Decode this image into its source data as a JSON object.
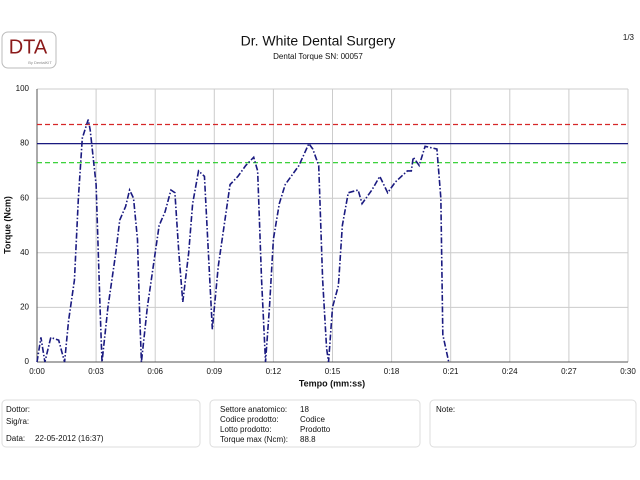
{
  "header": {
    "logo": "DTA",
    "logo_sub": "By DentalKIT",
    "page": "1/3"
  },
  "chart_data": {
    "type": "line",
    "title": "Dr. White Dental Surgery",
    "subtitle": "Dental Torque SN: 00057",
    "xlabel": "Tempo (mm:ss)",
    "ylabel": "Torque (Ncm)",
    "x": [
      0,
      0.2,
      0.4,
      0.7,
      1.1,
      1.4,
      1.6,
      1.9,
      2.1,
      2.3,
      2.6,
      2.7,
      3.0,
      3.2,
      3.3,
      3.6,
      4.0,
      4.2,
      4.5,
      4.7,
      4.9,
      5.1,
      5.2,
      5.3,
      5.6,
      5.9,
      6.2,
      6.5,
      6.8,
      7.0,
      7.2,
      7.4,
      7.7,
      7.9,
      8.2,
      8.5,
      8.7,
      8.9,
      9.2,
      9.5,
      9.8,
      10.2,
      10.6,
      11.0,
      11.2,
      11.4,
      11.6,
      11.8,
      12.0,
      12.3,
      12.6,
      12.9,
      13.3,
      13.8,
      14.0,
      14.3,
      14.5,
      14.7,
      14.8,
      15.0,
      15.3,
      15.5,
      15.8,
      16.3,
      16.5,
      17.0,
      17.4,
      17.8,
      18.2,
      18.8,
      19.0,
      19.1,
      19.4,
      19.7,
      20.3,
      20.5,
      20.6,
      20.9
    ],
    "series": [
      {
        "color": "#1a1a80",
        "values": [
          0,
          9,
          0,
          9,
          8,
          0,
          15,
          30,
          60,
          82,
          88.8,
          85,
          65,
          20,
          0,
          20,
          40,
          52,
          57,
          63,
          60,
          45,
          20,
          0,
          20,
          35,
          50,
          55,
          63,
          62,
          40,
          22,
          40,
          58,
          70,
          68,
          40,
          12,
          35,
          50,
          65,
          68,
          72,
          75,
          70,
          30,
          0,
          20,
          45,
          58,
          65,
          68,
          72,
          80,
          78,
          72,
          30,
          5,
          0,
          20,
          28,
          50,
          62,
          63,
          58,
          63,
          68,
          62,
          66,
          70,
          70,
          75,
          72,
          79,
          78,
          60,
          10,
          0
        ]
      }
    ],
    "reference_lines": [
      {
        "value": 87,
        "color": "#d62728",
        "dashed": true
      },
      {
        "value": 80,
        "color": "#1a1a80",
        "dashed": false
      },
      {
        "value": 73,
        "color": "#22cc22",
        "dashed": true
      }
    ],
    "xlim": [
      0,
      30
    ],
    "ylim": [
      0,
      100
    ],
    "xticks": [
      {
        "value": 0,
        "label": "0:00"
      },
      {
        "value": 3,
        "label": "0:03"
      },
      {
        "value": 6,
        "label": "0:06"
      },
      {
        "value": 9,
        "label": "0:09"
      },
      {
        "value": 12,
        "label": "0:12"
      },
      {
        "value": 15,
        "label": "0:15"
      },
      {
        "value": 18,
        "label": "0:18"
      },
      {
        "value": 21,
        "label": "0:21"
      },
      {
        "value": 24,
        "label": "0:24"
      },
      {
        "value": 27,
        "label": "0:27"
      },
      {
        "value": 30,
        "label": "0:30"
      }
    ],
    "yticks": [
      0,
      20,
      40,
      60,
      80,
      100
    ],
    "grid": true
  },
  "info": {
    "doctor": "Dottor:",
    "patient": "Sig/ra:",
    "date_label": "Data:",
    "date": "22-05-2012 (16:37)",
    "sector_label": "Settore anatomico:",
    "sector": "18",
    "code_label": "Codice prodotto:",
    "code": "Codice",
    "lot_label": "Lotto prodotto:",
    "lot": "Prodotto",
    "torque_label": "Torque max (Ncm):",
    "torque": "88.8",
    "note": "Note:"
  }
}
